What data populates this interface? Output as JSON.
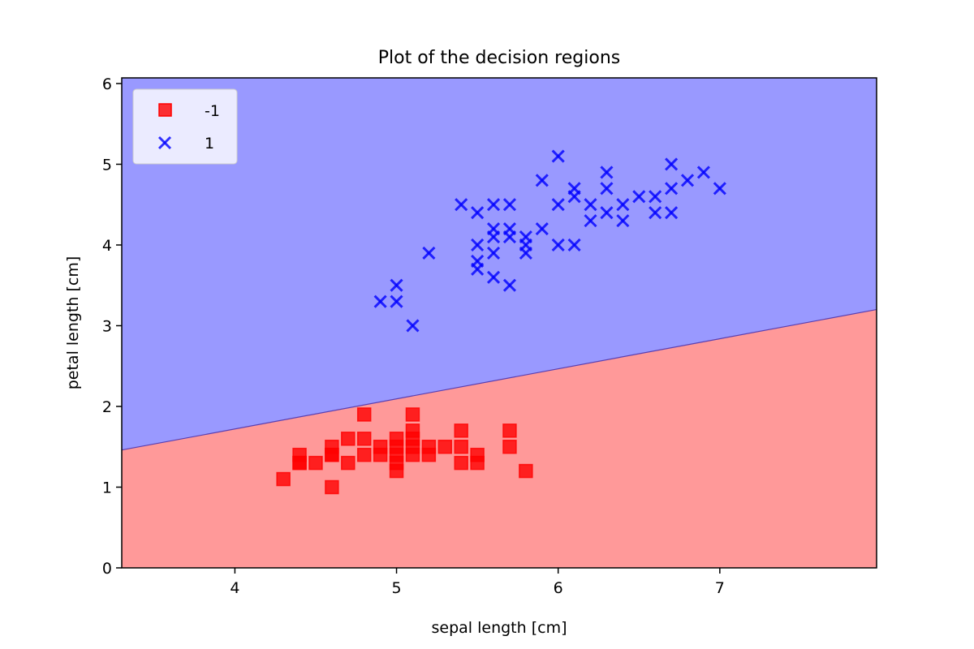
{
  "chart_data": {
    "type": "scatter",
    "title": "Plot of the decision regions",
    "xlabel": "sepal length [cm]",
    "ylabel": "petal length [cm]",
    "xlim": [
      3.3,
      7.97
    ],
    "ylim": [
      0,
      6.07
    ],
    "xticks": [
      "4",
      "5",
      "6",
      "7"
    ],
    "yticks": [
      "0",
      "1",
      "2",
      "3",
      "4",
      "5",
      "6"
    ],
    "grid": false,
    "legend": "top-left",
    "decision_boundary": {
      "x": [
        3.3,
        7.97
      ],
      "y": [
        1.46,
        3.2
      ]
    },
    "regions": [
      {
        "label": "-1",
        "color": "#ff9999",
        "side": "below"
      },
      {
        "label": "1",
        "color": "#9999ff",
        "side": "above"
      }
    ],
    "series": [
      {
        "name": "-1",
        "marker": "square",
        "color": "#ff0000",
        "points": [
          [
            4.3,
            1.1
          ],
          [
            4.4,
            1.4
          ],
          [
            4.4,
            1.3
          ],
          [
            4.4,
            1.3
          ],
          [
            4.5,
            1.3
          ],
          [
            4.6,
            1.0
          ],
          [
            4.6,
            1.4
          ],
          [
            4.6,
            1.5
          ],
          [
            4.6,
            1.4
          ],
          [
            4.7,
            1.3
          ],
          [
            4.7,
            1.6
          ],
          [
            4.8,
            1.4
          ],
          [
            4.8,
            1.6
          ],
          [
            4.8,
            1.9
          ],
          [
            4.9,
            1.5
          ],
          [
            4.9,
            1.4
          ],
          [
            5.0,
            1.4
          ],
          [
            5.0,
            1.5
          ],
          [
            5.0,
            1.6
          ],
          [
            5.0,
            1.2
          ],
          [
            5.0,
            1.3
          ],
          [
            5.1,
            1.4
          ],
          [
            5.1,
            1.5
          ],
          [
            5.1,
            1.7
          ],
          [
            5.1,
            1.9
          ],
          [
            5.1,
            1.6
          ],
          [
            5.2,
            1.5
          ],
          [
            5.2,
            1.4
          ],
          [
            5.3,
            1.5
          ],
          [
            5.4,
            1.7
          ],
          [
            5.4,
            1.5
          ],
          [
            5.4,
            1.3
          ],
          [
            5.5,
            1.4
          ],
          [
            5.5,
            1.3
          ],
          [
            5.7,
            1.7
          ],
          [
            5.7,
            1.5
          ],
          [
            5.8,
            1.2
          ]
        ]
      },
      {
        "name": "1",
        "marker": "x",
        "color": "#0000ff",
        "points": [
          [
            4.9,
            3.3
          ],
          [
            5.0,
            3.5
          ],
          [
            5.0,
            3.3
          ],
          [
            5.1,
            3.0
          ],
          [
            5.2,
            3.9
          ],
          [
            5.4,
            4.5
          ],
          [
            5.5,
            4.4
          ],
          [
            5.5,
            4.0
          ],
          [
            5.5,
            3.8
          ],
          [
            5.5,
            3.7
          ],
          [
            5.6,
            4.5
          ],
          [
            5.6,
            4.2
          ],
          [
            5.6,
            4.1
          ],
          [
            5.6,
            3.9
          ],
          [
            5.6,
            3.6
          ],
          [
            5.7,
            4.5
          ],
          [
            5.7,
            4.2
          ],
          [
            5.7,
            4.1
          ],
          [
            5.7,
            3.5
          ],
          [
            5.8,
            4.1
          ],
          [
            5.8,
            4.0
          ],
          [
            5.8,
            3.9
          ],
          [
            5.9,
            4.8
          ],
          [
            5.9,
            4.2
          ],
          [
            6.0,
            5.1
          ],
          [
            6.0,
            4.5
          ],
          [
            6.0,
            4.0
          ],
          [
            6.1,
            4.7
          ],
          [
            6.1,
            4.6
          ],
          [
            6.1,
            4.0
          ],
          [
            6.2,
            4.5
          ],
          [
            6.2,
            4.3
          ],
          [
            6.3,
            4.9
          ],
          [
            6.3,
            4.7
          ],
          [
            6.3,
            4.4
          ],
          [
            6.4,
            4.5
          ],
          [
            6.4,
            4.3
          ],
          [
            6.5,
            4.6
          ],
          [
            6.6,
            4.6
          ],
          [
            6.6,
            4.4
          ],
          [
            6.7,
            5.0
          ],
          [
            6.7,
            4.7
          ],
          [
            6.7,
            4.4
          ],
          [
            6.8,
            4.8
          ],
          [
            6.9,
            4.9
          ],
          [
            7.0,
            4.7
          ]
        ]
      }
    ]
  }
}
